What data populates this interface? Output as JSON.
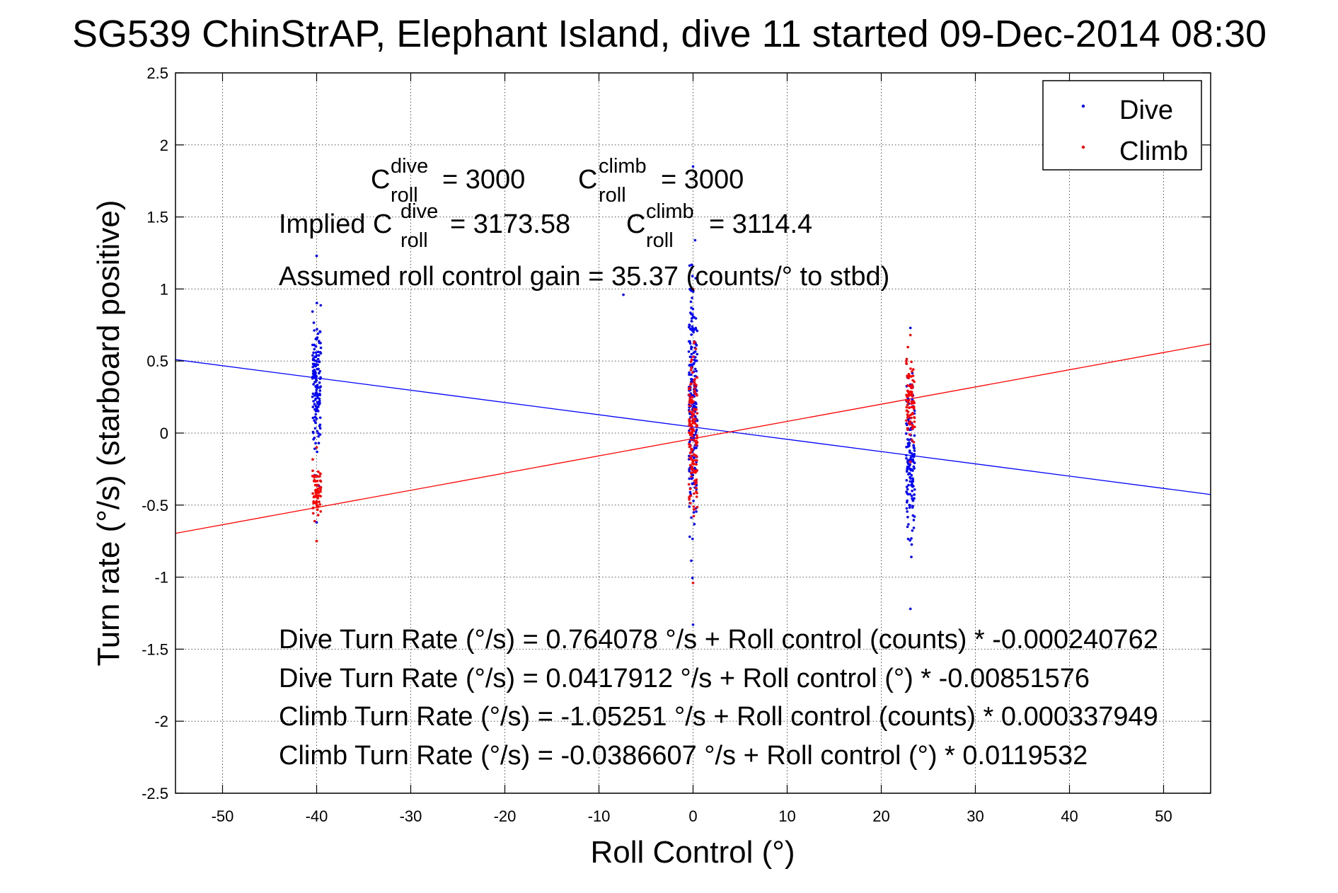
{
  "chart_data": {
    "type": "scatter",
    "title": "SG539 ChinStrAP, Elephant Island, dive 11 started 09-Dec-2014 08:30",
    "xlabel": "Roll Control (°)",
    "ylabel": "Turn rate (°/s) (starboard positive)",
    "xlim": [
      -55,
      55
    ],
    "ylim": [
      -2.5,
      2.5
    ],
    "grid": true,
    "legend_placement": "top-right",
    "x_ticks": [
      "-50",
      "-40",
      "-30",
      "-20",
      "-10",
      "0",
      "10",
      "20",
      "30",
      "40",
      "50"
    ],
    "y_ticks": [
      "2.5",
      "2",
      "1.5",
      "1",
      "0.5",
      "0",
      "-0.5",
      "-1",
      "-1.5",
      "-2",
      "-2.5"
    ],
    "colors": {
      "dive": "#0000ff",
      "climb": "#ff0000"
    },
    "series": [
      {
        "name": "Dive",
        "color": "#0000ff",
        "clusters": [
          {
            "x": -40,
            "y_min": -0.62,
            "y_max": 1.23
          },
          {
            "x": 0,
            "y_min": -1.33,
            "y_max": 1.85
          },
          {
            "x": 23.1,
            "y_min": -1.22,
            "y_max": 0.73
          }
        ],
        "outliers": [
          [
            -7.4,
            0.96
          ]
        ],
        "fit_line": {
          "intercept": 0.0417912,
          "slope": -0.00851576
        }
      },
      {
        "name": "Climb",
        "color": "#ff0000",
        "clusters": [
          {
            "x": -40,
            "y_min": -0.75,
            "y_max": -0.1
          },
          {
            "x": 0,
            "y_min": -1.04,
            "y_max": 1.0
          },
          {
            "x": 23.1,
            "y_min": -0.2,
            "y_max": 0.68
          }
        ],
        "outliers": [],
        "fit_line": {
          "intercept": -0.0386607,
          "slope": 0.0119532
        }
      }
    ],
    "legend": [
      "Dive",
      "Climb"
    ],
    "annotations": {
      "c_roll_line": {
        "c": "C",
        "sup_dive": "dive",
        "sub_roll": "roll",
        "dive_value": "= 3000",
        "sup_climb": "climb",
        "climb_value": "= 3000"
      },
      "implied_line": {
        "prefix": "Implied C",
        "dive_value": "= 3173.58",
        "climb_value": "= 3114.4"
      },
      "gain_line": "Assumed roll control gain = 35.37 (counts/° to stbd)",
      "equations": [
        "Dive Turn Rate (°/s) = 0.764078 °/s + Roll control (counts) * -0.000240762",
        "Dive Turn Rate (°/s) = 0.0417912 °/s + Roll control (°) * -0.00851576",
        "Climb Turn Rate (°/s) = -1.05251 °/s + Roll control (counts) * 0.000337949",
        "Climb Turn Rate (°/s) = -0.0386607 °/s + Roll control (°) * 0.0119532"
      ]
    }
  }
}
